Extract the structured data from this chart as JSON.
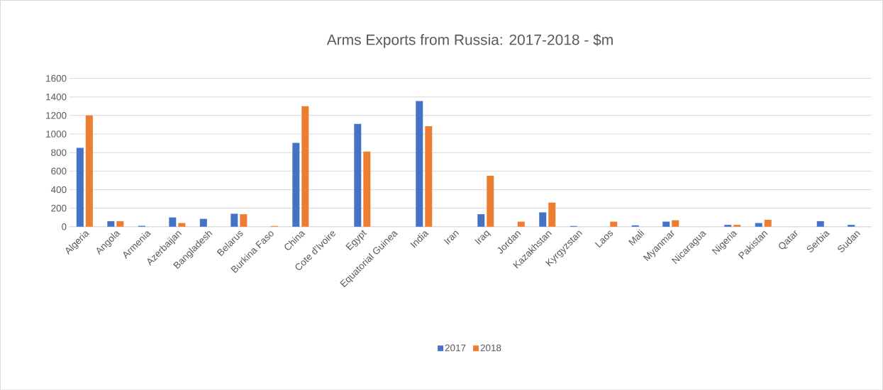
{
  "chart_data": {
    "type": "bar",
    "title": "Arms Exports from Russia: 2017-2018 - $m",
    "categories": [
      "Algeria",
      "Angola",
      "Armenia",
      "Azerbaijan",
      "Bangladesh",
      "Belarus",
      "Burkina Faso",
      "China",
      "Cote d'Ivoire",
      "Egypt",
      "Equatorial Guinea",
      "India",
      "Iran",
      "Iraq",
      "Jordan",
      "Kazakhstan",
      "Kyrgyzstan",
      "Laos",
      "Mali",
      "Myanmar",
      "Nicaragua",
      "Nigeria",
      "Pakistan",
      "Qatar",
      "Serbia",
      "Sudan"
    ],
    "series": [
      {
        "name": "2017",
        "color": "#4472c4",
        "values": [
          850,
          60,
          10,
          100,
          85,
          140,
          null,
          905,
          null,
          1110,
          null,
          1355,
          null,
          135,
          null,
          155,
          8,
          null,
          15,
          55,
          null,
          20,
          40,
          null,
          60,
          20
        ]
      },
      {
        "name": "2018",
        "color": "#ed7d31",
        "values": [
          1200,
          60,
          null,
          40,
          null,
          135,
          8,
          1300,
          null,
          810,
          null,
          1085,
          null,
          550,
          55,
          260,
          null,
          55,
          null,
          70,
          null,
          20,
          75,
          null,
          null,
          null
        ]
      }
    ],
    "ylim": [
      0,
      1600
    ],
    "yticks": [
      0,
      200,
      400,
      600,
      800,
      1000,
      1200,
      1400,
      1600
    ],
    "grid": "y",
    "legend": "bottom"
  }
}
